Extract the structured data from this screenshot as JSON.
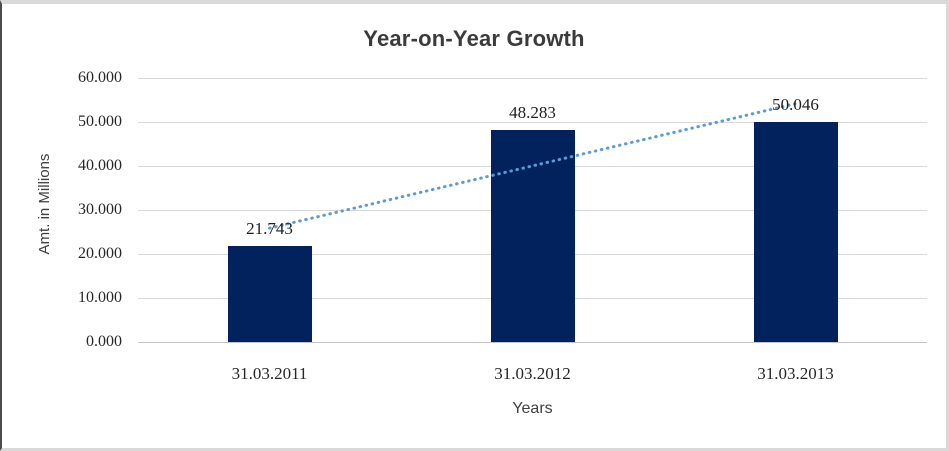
{
  "chart_data": {
    "type": "bar",
    "title": "Year-on-Year Growth",
    "xlabel": "Years",
    "ylabel": "Amt. in Millions",
    "categories": [
      "31.03.2011",
      "31.03.2012",
      "31.03.2013"
    ],
    "values": [
      21.743,
      48.283,
      50.046
    ],
    "data_labels": [
      "21.743",
      "48.283",
      "50.046"
    ],
    "ylim": [
      0,
      60
    ],
    "ytick_step": 10,
    "ytick_labels": [
      "0.000",
      "10.000",
      "20.000",
      "30.000",
      "40.000",
      "50.000",
      "60.000"
    ],
    "grid": "horizontal",
    "legend": "none",
    "trendline": {
      "kind": "linear",
      "style": "dotted"
    },
    "colors": {
      "bar": "#02225E",
      "trendline": "#5B9BD5",
      "gridline": "#D9D9D9",
      "axis_line": "#C3C3C3",
      "title_text": "#3B3B3B",
      "tick_text": "#262626",
      "axis_title_text": "#404040"
    }
  }
}
